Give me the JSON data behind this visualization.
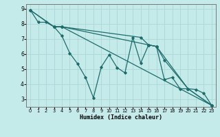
{
  "title": "",
  "xlabel": "Humidex (Indice chaleur)",
  "ylabel": "",
  "bg_color": "#c5eaea",
  "grid_color": "#afd8d8",
  "line_color": "#1e6b6b",
  "xlim": [
    -0.5,
    23.5
  ],
  "ylim": [
    2.5,
    9.3
  ],
  "xticks": [
    0,
    1,
    2,
    3,
    4,
    5,
    6,
    7,
    8,
    9,
    10,
    11,
    12,
    13,
    14,
    15,
    16,
    17,
    18,
    19,
    20,
    21,
    22,
    23
  ],
  "yticks": [
    3,
    4,
    5,
    6,
    7,
    8,
    9
  ],
  "series": [
    {
      "x": [
        0,
        1,
        2,
        3,
        4,
        5,
        6,
        7,
        8,
        9,
        10,
        11,
        12,
        13,
        14,
        15,
        16,
        17,
        18,
        19,
        20,
        21,
        22,
        23
      ],
      "y": [
        8.9,
        8.1,
        8.1,
        7.8,
        7.2,
        6.05,
        5.35,
        4.45,
        3.1,
        5.15,
        5.95,
        5.1,
        4.75,
        7.1,
        5.4,
        6.6,
        6.5,
        4.3,
        4.45,
        3.7,
        3.7,
        3.65,
        3.4,
        2.6
      ]
    },
    {
      "x": [
        0,
        3,
        4,
        23
      ],
      "y": [
        8.9,
        7.8,
        7.8,
        2.6
      ]
    },
    {
      "x": [
        0,
        3,
        4,
        14,
        15,
        16,
        20,
        23
      ],
      "y": [
        8.9,
        7.8,
        7.8,
        7.1,
        6.6,
        6.5,
        3.7,
        2.6
      ]
    },
    {
      "x": [
        3,
        4,
        15,
        16,
        17,
        20,
        23
      ],
      "y": [
        7.8,
        7.8,
        6.6,
        6.5,
        5.6,
        3.7,
        2.6
      ]
    }
  ]
}
